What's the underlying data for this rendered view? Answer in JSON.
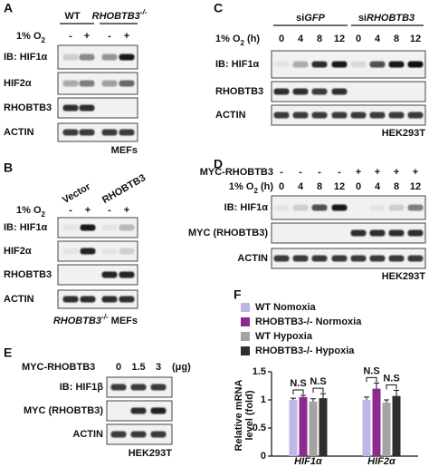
{
  "panels": {
    "A": {
      "label": "A",
      "groups": [
        "WT",
        "RHOBTB3"
      ],
      "group_sup": "-/-",
      "condition": "1% O",
      "condition_sub": "2",
      "lanes": [
        "-",
        "+",
        "-",
        "+"
      ],
      "blots": [
        "IB: HIF1α",
        "HIF2α",
        "RHOBTB3",
        "ACTIN"
      ],
      "footer": "MEFs"
    },
    "B": {
      "label": "B",
      "groups": [
        "Vector",
        "RHOBTB3"
      ],
      "condition": "1% O",
      "condition_sub": "2",
      "lanes": [
        "-",
        "+",
        "-",
        "+"
      ],
      "blots": [
        "IB: HIF1α",
        "HIF2α",
        "RHOBTB3",
        "ACTIN"
      ],
      "footer": "RHOBTB3",
      "footer_sup": "-/-",
      "footer_tail": " MEFs"
    },
    "C": {
      "label": "C",
      "group_prefix": "si",
      "groups": [
        "GFP",
        "RHOBTB3"
      ],
      "condition": "1% O",
      "condition_sub": "2",
      "condition_tail": " (h)",
      "lanes": [
        "0",
        "4",
        "8",
        "12",
        "0",
        "4",
        "8",
        "12"
      ],
      "blots": [
        "IB: HIF1α",
        "RHOBTB3",
        "ACTIN"
      ],
      "footer": "HEK293T"
    },
    "D": {
      "label": "D",
      "treatment": "MYC-RHOBTB3",
      "treatment_lanes": [
        "-",
        "-",
        "-",
        "-",
        "+",
        "+",
        "+",
        "+"
      ],
      "condition": "1% O",
      "condition_sub": "2",
      "condition_tail": " (h)",
      "lanes": [
        "0",
        "4",
        "8",
        "12",
        "0",
        "4",
        "8",
        "12"
      ],
      "blots": [
        "IB: HIF1α",
        "MYC (RHOBTB3)",
        "ACTIN"
      ],
      "footer": "HEK293T"
    },
    "E": {
      "label": "E",
      "treatment": "MYC-RHOBTB3",
      "lanes": [
        "0",
        "1.5",
        "3"
      ],
      "unit": "(μg)",
      "blots": [
        "IB: HIF1β",
        "MYC (RHOBTB3)",
        "ACTIN"
      ],
      "footer": "HEK293T"
    }
  },
  "chart_data": {
    "type": "bar",
    "panel_label": "F",
    "y_label": [
      "Relative mRNA",
      "level (fold)"
    ],
    "categories": [
      "HIF1α",
      "HIF2α"
    ],
    "ylim": [
      0,
      1.5
    ],
    "yticks": [
      0,
      0.5,
      1,
      1.5
    ],
    "legend": "top",
    "series": [
      {
        "name": "WT Nomoxia",
        "color": "#bdb6e6",
        "values": [
          1.0,
          1.0
        ],
        "errors": [
          0.03,
          0.05
        ]
      },
      {
        "name": "RHOBTB3-/- Normoxia",
        "color": "#8c2a8e",
        "values": [
          1.05,
          1.2
        ],
        "errors": [
          0.03,
          0.1
        ]
      },
      {
        "name": "WT Hypoxia",
        "color": "#a3a3a3",
        "values": [
          0.97,
          0.95
        ],
        "errors": [
          0.05,
          0.05
        ]
      },
      {
        "name": "RHOBTB3-/- Hypoxia",
        "color": "#2e2e2e",
        "values": [
          1.03,
          1.07
        ],
        "errors": [
          0.08,
          0.1
        ]
      }
    ],
    "annotations": [
      "N.S",
      "N.S",
      "N.S",
      "N.S"
    ]
  }
}
